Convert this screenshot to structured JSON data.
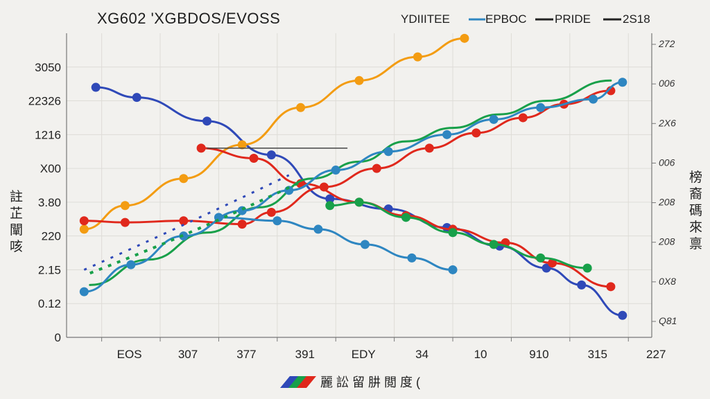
{
  "chart_data": {
    "type": "line",
    "title": "XG602 'XGBDOS/EVOSS",
    "legend": {
      "placement": "top-right",
      "header": "YDIIITEE",
      "entries": [
        {
          "label": "EPBOC",
          "color": "#2e86c1"
        },
        {
          "label": "PRIDE",
          "color": "#222222"
        },
        {
          "label": "2S18",
          "color": "#222222"
        }
      ]
    },
    "x_ticks": [
      "EOS",
      "307",
      "377",
      "391",
      "EDY",
      "34",
      "10",
      "910",
      "315",
      "227"
    ],
    "y_ticks": [
      "0",
      "0.12",
      "2.15",
      "220",
      "3.80",
      "X00",
      "1216",
      "22326",
      "3050"
    ],
    "right_ticks": [
      "272",
      "006",
      "2X6",
      "006",
      "208",
      "208",
      "0X8",
      "Q81"
    ],
    "ylabel_left": "註 芷 闡 咳",
    "ylabel_right": "榜 裔 碼 來 禀",
    "xlabel": "麗 訟 留 肼 閲 度 (",
    "grid": true,
    "ylim": [
      0,
      9
    ],
    "xlim": [
      0,
      10
    ],
    "series": [
      {
        "color": "#2f49b8",
        "x": [
          0.5,
          1.2,
          2.4,
          3.5,
          4.5,
          5.5,
          6.5,
          7.4,
          8.2,
          8.8,
          9.5
        ],
        "y": [
          7.4,
          7.1,
          6.4,
          5.4,
          4.1,
          3.8,
          3.25,
          2.7,
          2.05,
          1.55,
          0.65
        ],
        "markers": true
      },
      {
        "color": "#f39c12",
        "x": [
          0.3,
          1.0,
          2.0,
          3.0,
          4.0,
          5.0,
          6.0,
          6.8
        ],
        "y": [
          3.2,
          3.9,
          4.7,
          5.7,
          6.8,
          7.6,
          8.3,
          8.85
        ],
        "markers": true
      },
      {
        "color": "#e0281c",
        "x": [
          0.3,
          1.0,
          2.0,
          3.0,
          3.5,
          4.4,
          5.3,
          6.2,
          7.0,
          7.8,
          8.5,
          9.3
        ],
        "y": [
          3.45,
          3.4,
          3.45,
          3.35,
          3.7,
          4.45,
          5.0,
          5.6,
          6.05,
          6.5,
          6.9,
          7.3
        ],
        "markers": true
      },
      {
        "color": "#e0281c",
        "x": [
          2.3,
          3.2,
          4.0,
          5.0,
          5.8,
          6.6,
          7.5,
          8.3,
          9.3
        ],
        "y": [
          5.6,
          5.3,
          4.55,
          4.0,
          3.6,
          3.2,
          2.8,
          2.2,
          1.5
        ],
        "markers": true
      },
      {
        "color": "#18a04a",
        "x": [
          0.4,
          1.4,
          2.4,
          3.3,
          4.2,
          5.0,
          5.8,
          6.6,
          7.4,
          8.2,
          9.3
        ],
        "y": [
          1.55,
          2.3,
          3.1,
          3.85,
          4.7,
          5.2,
          5.8,
          6.2,
          6.6,
          7.0,
          7.6
        ],
        "markers": false
      },
      {
        "color": "#18a04a",
        "x": [
          4.5,
          5.0,
          5.8,
          6.6,
          7.3,
          8.1,
          8.9
        ],
        "y": [
          3.9,
          4.0,
          3.55,
          3.1,
          2.75,
          2.35,
          2.05
        ],
        "markers": true
      },
      {
        "color": "#2e86c1",
        "x": [
          0.3,
          1.1,
          2.0,
          3.0,
          3.8,
          4.6,
          5.5,
          6.5,
          7.3,
          8.1,
          9.0,
          9.5
        ],
        "y": [
          1.35,
          2.15,
          3.0,
          3.75,
          4.35,
          4.95,
          5.5,
          6.0,
          6.45,
          6.8,
          7.05,
          7.55
        ],
        "markers": true
      },
      {
        "color": "#2e86c1",
        "x": [
          2.6,
          3.6,
          4.3,
          5.1,
          5.9,
          6.6
        ],
        "y": [
          3.55,
          3.45,
          3.2,
          2.75,
          2.35,
          2.0
        ],
        "markers": true
      }
    ]
  }
}
